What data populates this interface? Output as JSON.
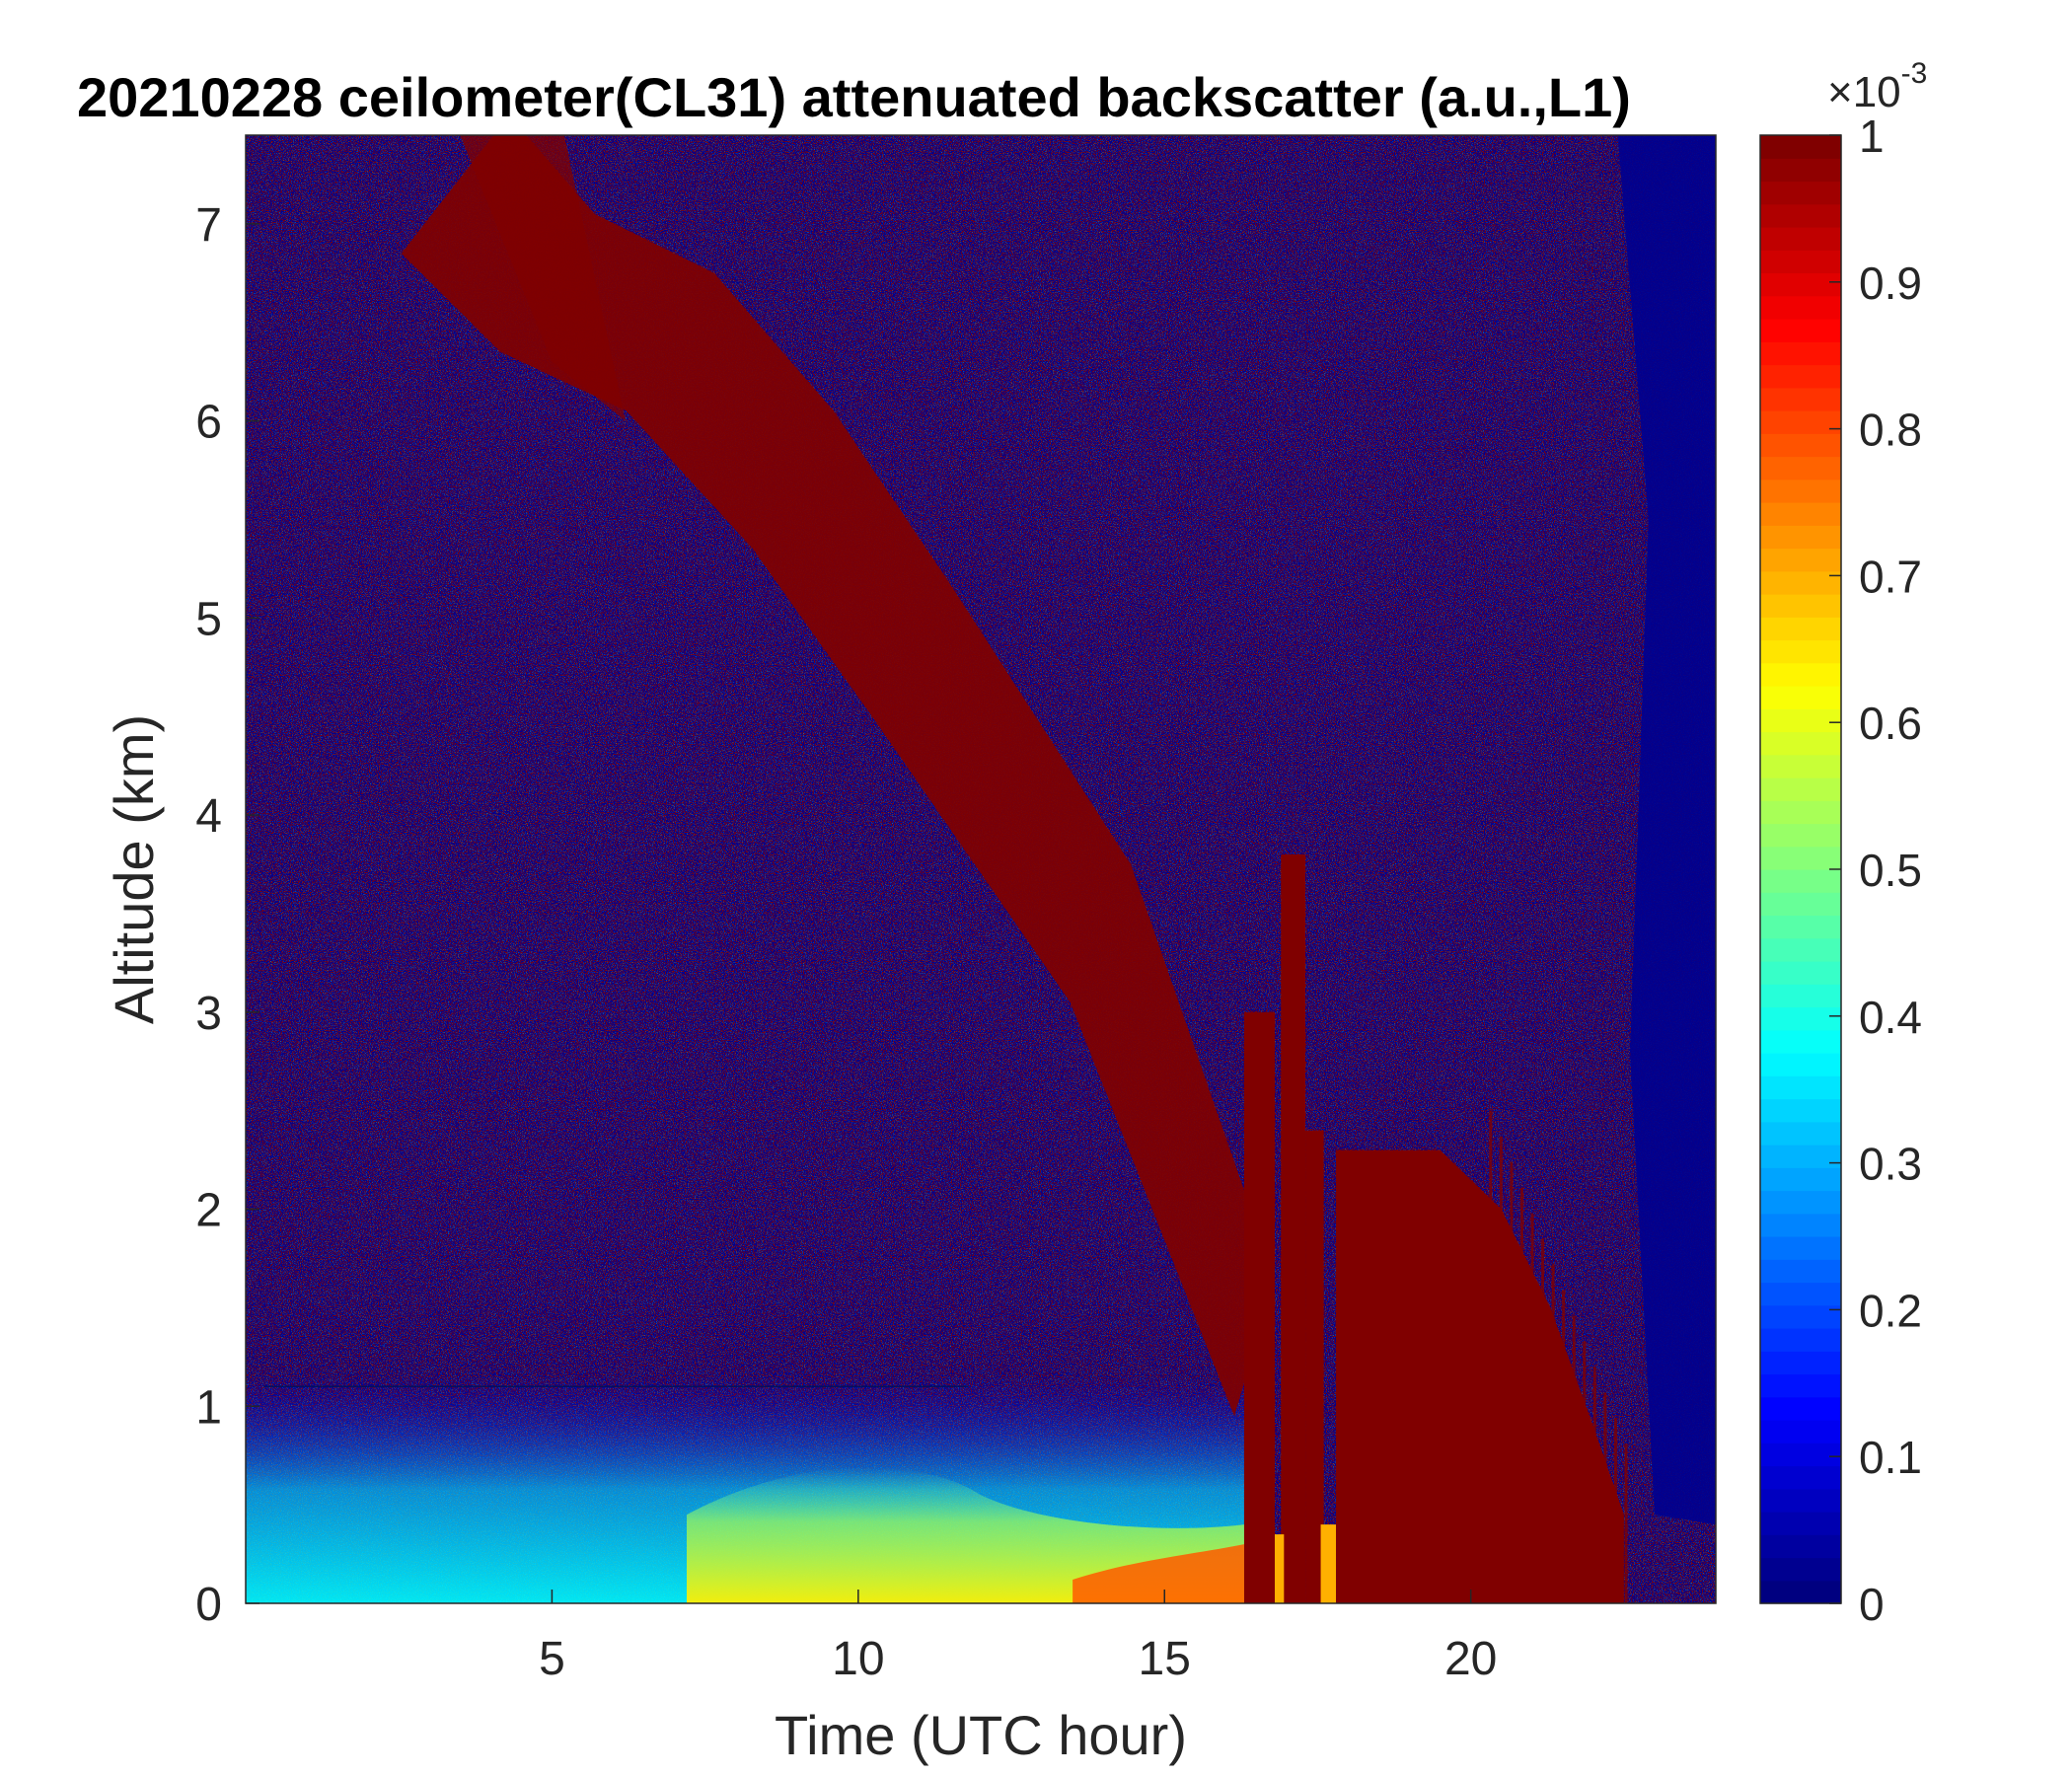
{
  "chart_data": {
    "type": "heatmap",
    "title": "20210228 ceilometer(CL31) attenuated backscatter (a.u.,L1)",
    "xlabel": "Time (UTC hour)",
    "ylabel": "Altitude (km)",
    "xlim": [
      0,
      24
    ],
    "ylim": [
      0,
      7.45
    ],
    "xticks": [
      5,
      10,
      15,
      20
    ],
    "yticks": [
      0,
      1,
      2,
      3,
      4,
      5,
      6,
      7
    ],
    "colorbar": {
      "colormap": "jet",
      "clim": [
        0,
        1
      ],
      "ticks": [
        "0",
        "0.1",
        "0.2",
        "0.3",
        "0.4",
        "0.5",
        "0.6",
        "0.7",
        "0.8",
        "0.9",
        "1"
      ],
      "exponent_base": "×10",
      "exponent": "-3",
      "colors": [
        "#00008f",
        "#0000ff",
        "#00ffff",
        "#ffff00",
        "#ff0000",
        "#800000"
      ]
    },
    "features": [
      {
        "name": "boundary_layer_aerosol",
        "time_range": [
          0,
          16.3
        ],
        "altitude_range": [
          0,
          0.8
        ],
        "value_range": [
          0.3,
          0.75
        ]
      },
      {
        "name": "descending_cloud_band",
        "time_start": 3.5,
        "altitude_start": 7.4,
        "time_end": 16.5,
        "altitude_end": 1.5,
        "value": 1.0
      },
      {
        "name": "low_cloud_columns",
        "time_range": [
          16.3,
          17.6
        ],
        "altitude_range": [
          0,
          4
        ],
        "value": 1.0
      },
      {
        "name": "dense_cloud_precipitation",
        "time_range": [
          17.8,
          22.5
        ],
        "altitude_range": [
          0,
          2.2
        ],
        "value": 1.0
      },
      {
        "name": "clear_signal_region",
        "time_range": [
          22.5,
          24
        ],
        "altitude_range": [
          0.4,
          7.45
        ],
        "value": 0.0
      }
    ]
  }
}
